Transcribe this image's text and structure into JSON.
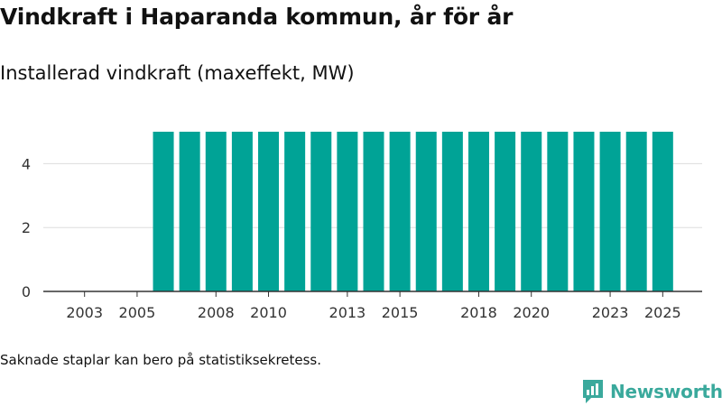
{
  "title": "Vindkraft i Haparanda kommun, år för år",
  "subtitle": "Installerad vindkraft (maxeffekt, MW)",
  "note": "Saknade staplar kan bero på statistiksekretess.",
  "brand": {
    "name": "Newsworthy",
    "icon": "newsworthy-logo-icon"
  },
  "colors": {
    "bar": "#00a396",
    "grid": "#dddddd",
    "axis": "#333333",
    "text": "#333333",
    "brand": "#3aa99c"
  },
  "chart_data": {
    "type": "bar",
    "title": "Vindkraft i Haparanda kommun, år för år",
    "subtitle": "Installerad vindkraft (maxeffekt, MW)",
    "xlabel": "",
    "ylabel": "",
    "x_range": [
      2001.5,
      2026.5
    ],
    "ylim": [
      0,
      5.0
    ],
    "yticks": [
      0,
      2,
      4
    ],
    "grid": true,
    "xtick_labels": [
      "2003",
      "2005",
      "2008",
      "2010",
      "2013",
      "2015",
      "2018",
      "2020",
      "2023",
      "2025"
    ],
    "categories": [
      "2006",
      "2007",
      "2008",
      "2009",
      "2010",
      "2011",
      "2012",
      "2013",
      "2014",
      "2015",
      "2016",
      "2017",
      "2018",
      "2019",
      "2020",
      "2021",
      "2022",
      "2023",
      "2024",
      "2025"
    ],
    "values": [
      5,
      5,
      5,
      5,
      5,
      5,
      5,
      5,
      5,
      5,
      5,
      5,
      5,
      5,
      5,
      5,
      5,
      5,
      5,
      5
    ]
  }
}
